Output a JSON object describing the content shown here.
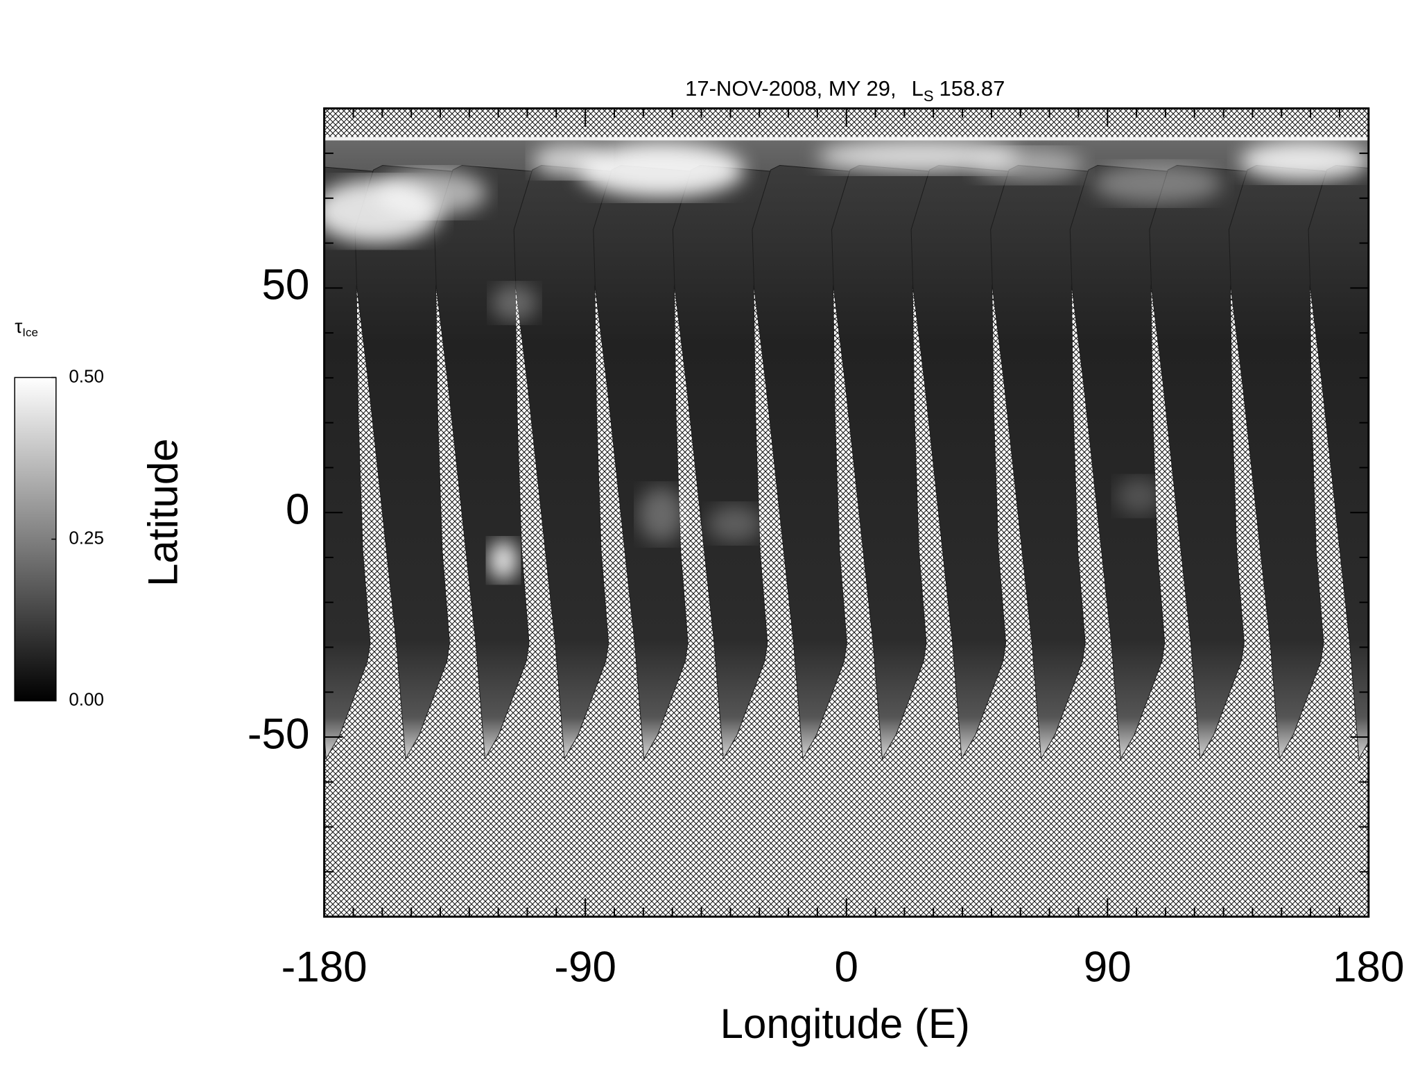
{
  "chart_data": {
    "type": "map",
    "title": "17-NOV-2008, MY 29,",
    "ls_symbol": "L",
    "ls_subscript": "S",
    "ls_value": 158.87,
    "x_label": "Longitude (E)",
    "y_label": "Latitude",
    "xlim": [
      -180,
      180
    ],
    "ylim": [
      -90,
      90
    ],
    "xticks": [
      -180,
      -90,
      0,
      90,
      180
    ],
    "yticks": [
      -50,
      0,
      50
    ],
    "xminorticks": [
      -170,
      -160,
      -150,
      -140,
      -130,
      -120,
      -110,
      -100,
      -80,
      -70,
      -60,
      -50,
      -40,
      -30,
      -20,
      -10,
      10,
      20,
      30,
      40,
      50,
      60,
      70,
      80,
      100,
      110,
      120,
      130,
      140,
      150,
      160,
      170
    ],
    "yminorticks": [
      -80,
      -70,
      -60,
      -40,
      -30,
      -20,
      -10,
      10,
      20,
      30,
      40,
      60,
      70,
      80
    ],
    "colorbar": {
      "label": "τ",
      "label_subscript": "Ice",
      "lim": [
        0,
        0.5
      ],
      "colors": [
        "#000000",
        "#ffffff"
      ],
      "ticks": [
        {
          "value": 0,
          "label": "0.00"
        },
        {
          "value": 0.25,
          "label": "0.25"
        },
        {
          "value": 0.5,
          "label": "0.50"
        }
      ]
    }
  }
}
